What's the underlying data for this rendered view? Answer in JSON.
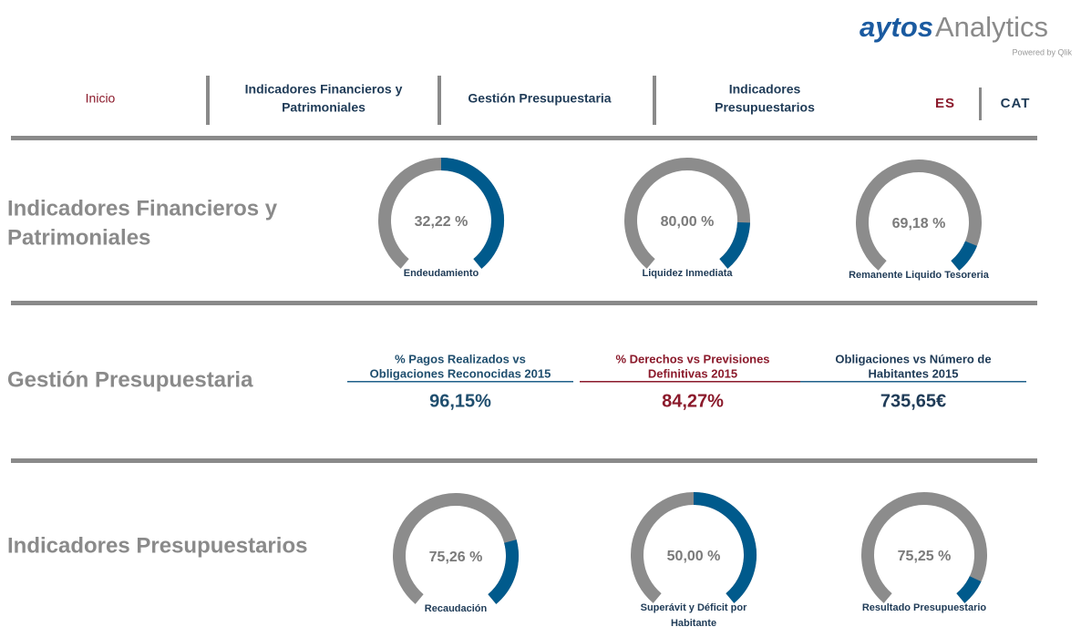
{
  "logo": {
    "brand": "aytos",
    "product": "Analytics",
    "powered": "Powered by Qlik"
  },
  "nav": {
    "items": [
      {
        "lines": [
          "Inicio"
        ]
      },
      {
        "lines": [
          "Indicadores Financieros y",
          "Patrimoniales"
        ]
      },
      {
        "lines": [
          "Gestión Presupuestaria"
        ]
      },
      {
        "lines": [
          "Indicadores",
          "Presupuestarios"
        ]
      }
    ],
    "languages": [
      "ES",
      "CAT"
    ]
  },
  "sections": [
    {
      "title": [
        "Indicadores Financieros y",
        "Patrimoniales"
      ],
      "gauges": [
        {
          "value": "32,22 %",
          "label": [
            "Endeudamiento"
          ]
        },
        {
          "value": "80,00 %",
          "label": [
            "Liquidez Inmediata"
          ]
        },
        {
          "value": "69,18 %",
          "label": [
            "Remanente Liquido Tesoreria"
          ]
        }
      ]
    },
    {
      "title": [
        "Gestión Presupuestaria"
      ],
      "kpis": [
        {
          "title": [
            "% Pagos Realizados vs",
            "Obligaciones Reconocidas 2015"
          ],
          "value": "96,15%"
        },
        {
          "title": [
            "% Derechos vs Previsiones",
            "Definitivas 2015"
          ],
          "value": "84,27%"
        },
        {
          "title": [
            "Obligaciones vs Número de",
            "Habitantes 2015"
          ],
          "value": "735,65€"
        }
      ]
    },
    {
      "title": [
        "Indicadores Presupuestarios"
      ],
      "gauges": [
        {
          "value": "75,26 %",
          "label": [
            "Recaudación"
          ]
        },
        {
          "value": "50,00 %",
          "label": [
            "Superávit y Déficit por",
            "Habitante"
          ]
        },
        {
          "value": "75,25 %",
          "label": [
            "Resultado Presupuestario"
          ]
        }
      ]
    }
  ]
}
